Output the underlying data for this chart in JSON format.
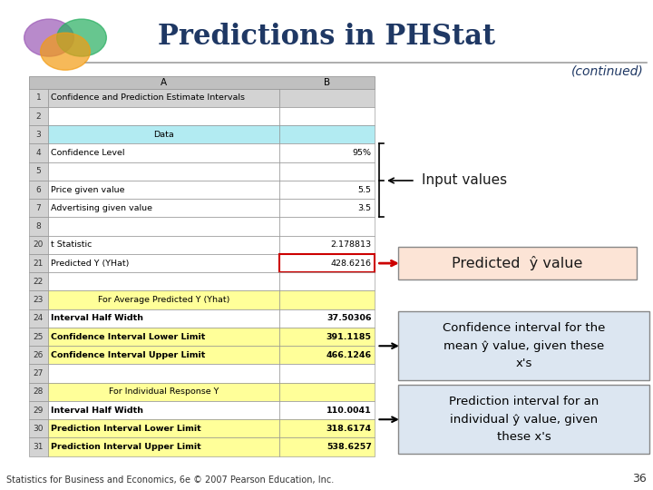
{
  "title": "Predictions in PHStat",
  "continued": "(continued)",
  "bg_color": "#ffffff",
  "title_color": "#1F3864",
  "footer": "Statistics for Business and Economics, 6e © 2007 Pearson Education, Inc.",
  "page_num": "36",
  "rows": [
    {
      "row": 1,
      "A": "Confidence and Prediction Estimate Intervals",
      "B": "",
      "bg": "#d3d3d3",
      "bold": false,
      "center_a": false
    },
    {
      "row": 2,
      "A": "",
      "B": "",
      "bg": "#ffffff",
      "bold": false,
      "center_a": false
    },
    {
      "row": 3,
      "A": "Data",
      "B": "",
      "bg": "#b2ebf2",
      "bold": false,
      "center_a": true
    },
    {
      "row": 4,
      "A": "Confidence Level",
      "B": "95%",
      "bg": "#ffffff",
      "bold": false,
      "center_a": false
    },
    {
      "row": 5,
      "A": "",
      "B": "",
      "bg": "#ffffff",
      "bold": false,
      "center_a": false
    },
    {
      "row": 6,
      "A": "Price given value",
      "B": "5.5",
      "bg": "#ffffff",
      "bold": false,
      "center_a": false
    },
    {
      "row": 7,
      "A": "Advertising given value",
      "B": "3.5",
      "bg": "#ffffff",
      "bold": false,
      "center_a": false
    },
    {
      "row": 8,
      "A": "",
      "B": "",
      "bg": "#ffffff",
      "bold": false,
      "center_a": false
    },
    {
      "row": 20,
      "A": "t Statistic",
      "B": "2.178813",
      "bg": "#ffffff",
      "bold": false,
      "center_a": false
    },
    {
      "row": 21,
      "A": "Predicted Y (YHat)",
      "B": "428.6216",
      "bg": "#ffffff",
      "bold": false,
      "center_a": false,
      "highlight_b": true
    },
    {
      "row": 22,
      "A": "",
      "B": "",
      "bg": "#ffffff",
      "bold": false,
      "center_a": false
    },
    {
      "row": 23,
      "A": "For Average Predicted Y (Yhat)",
      "B": "",
      "bg": "#ffff99",
      "bold": false,
      "center_a": true
    },
    {
      "row": 24,
      "A": "Interval Half Width",
      "B": "37.50306",
      "bg": "#ffffff",
      "bold": true,
      "center_a": false
    },
    {
      "row": 25,
      "A": "Confidence Interval Lower Limit",
      "B": "391.1185",
      "bg": "#ffff99",
      "bold": true,
      "center_a": false
    },
    {
      "row": 26,
      "A": "Confidence Interval Upper Limit",
      "B": "466.1246",
      "bg": "#ffff99",
      "bold": true,
      "center_a": false
    },
    {
      "row": 27,
      "A": "",
      "B": "",
      "bg": "#ffffff",
      "bold": false,
      "center_a": false
    },
    {
      "row": 28,
      "A": "For Individual Response Y",
      "B": "",
      "bg": "#ffff99",
      "bold": false,
      "center_a": true
    },
    {
      "row": 29,
      "A": "Interval Half Width",
      "B": "110.0041",
      "bg": "#ffffff",
      "bold": true,
      "center_a": false
    },
    {
      "row": 30,
      "A": "Prediction Interval Lower Limit",
      "B": "318.6174",
      "bg": "#ffff99",
      "bold": true,
      "center_a": false
    },
    {
      "row": 31,
      "A": "Prediction Interval Upper Limit",
      "B": "538.6257",
      "bg": "#ffff99",
      "bold": true,
      "center_a": false
    }
  ]
}
